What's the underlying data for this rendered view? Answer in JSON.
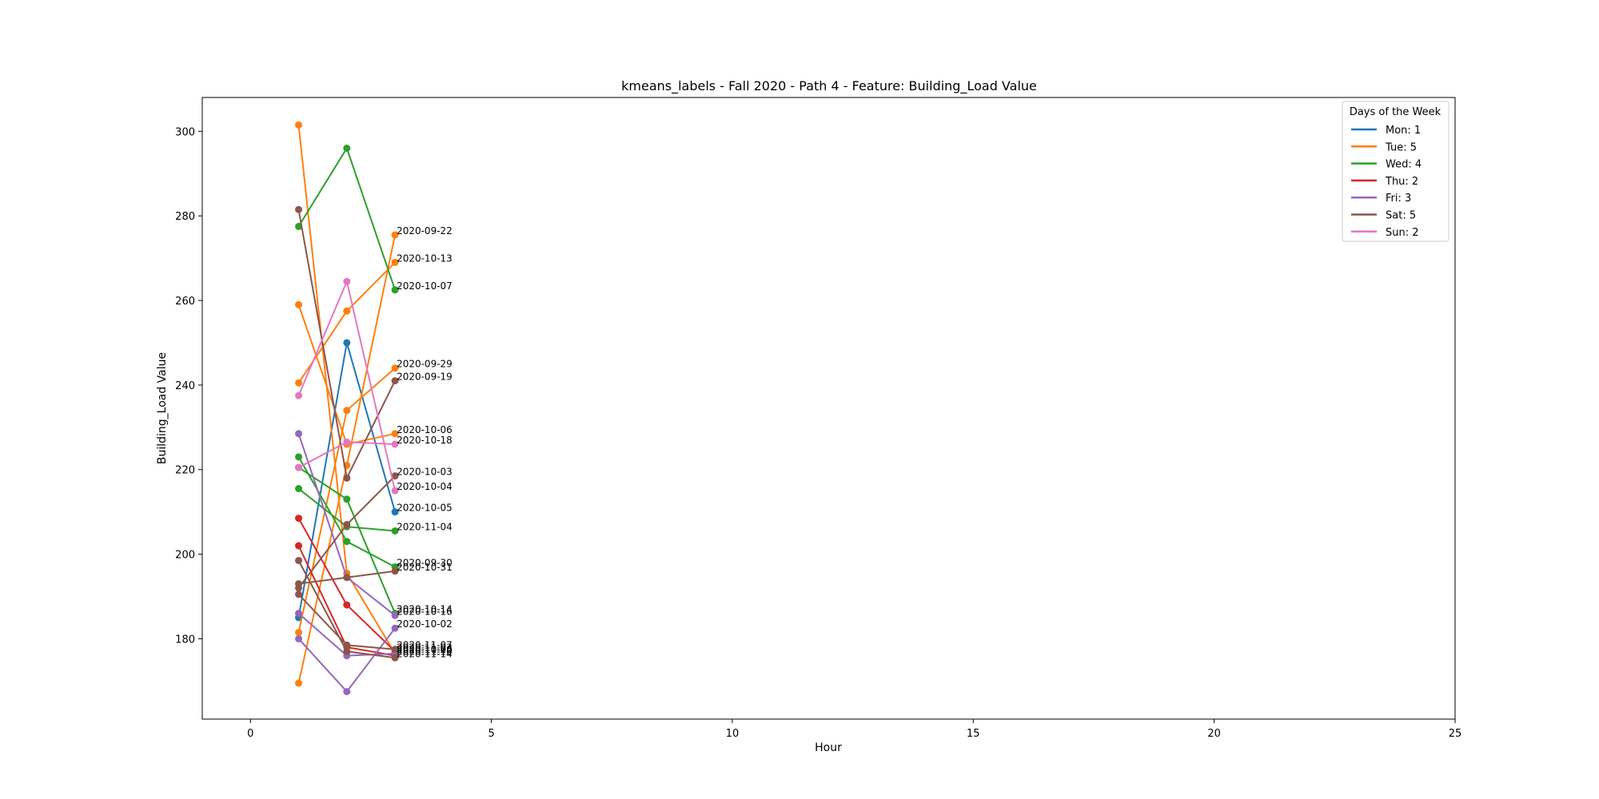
{
  "chart_data": {
    "type": "line",
    "title": "kmeans_labels - Fall 2020 - Path 4 - Feature: Building_Load Value",
    "xlabel": "Hour",
    "ylabel": "Building_Load Value",
    "xlim": [
      -1,
      25
    ],
    "ylim": [
      161,
      308
    ],
    "xticks": [
      0,
      5,
      10,
      15,
      20,
      25
    ],
    "yticks": [
      180,
      200,
      220,
      240,
      260,
      280,
      300
    ],
    "grid": false,
    "legend": {
      "title": "Days of the Week",
      "placement": "top-right",
      "entries": [
        {
          "label": "Mon: 1",
          "color": "#1f77b4"
        },
        {
          "label": "Tue: 5",
          "color": "#ff7f0e"
        },
        {
          "label": "Wed: 4",
          "color": "#2ca02c"
        },
        {
          "label": "Thu: 2",
          "color": "#d62728"
        },
        {
          "label": "Fri: 3",
          "color": "#9467bd"
        },
        {
          "label": "Sat: 5",
          "color": "#8c564b"
        },
        {
          "label": "Sun: 2",
          "color": "#e377c2"
        }
      ]
    },
    "series": [
      {
        "date": "2020-10-05",
        "color": "#1f77b4",
        "x": [
          1,
          2,
          3
        ],
        "y": [
          185.0,
          250.0,
          210.0
        ]
      },
      {
        "date": "2020-09-22",
        "color": "#ff7f0e",
        "x": [
          1,
          2,
          3
        ],
        "y": [
          169.5,
          221.0,
          275.5
        ]
      },
      {
        "date": "2020-10-13",
        "color": "#ff7f0e",
        "x": [
          1,
          2,
          3
        ],
        "y": [
          240.5,
          257.5,
          269.0
        ]
      },
      {
        "date": "2020-09-29",
        "color": "#ff7f0e",
        "x": [
          1,
          2,
          3
        ],
        "y": [
          181.5,
          234.0,
          244.0
        ]
      },
      {
        "date": "2020-10-06",
        "color": "#ff7f0e",
        "x": [
          1,
          2,
          3
        ],
        "y": [
          259.0,
          226.0,
          228.5
        ]
      },
      {
        "date": "2020-10-20",
        "color": "#ff7f0e",
        "x": [
          1,
          2,
          3
        ],
        "y": [
          301.5,
          195.5,
          176.5
        ]
      },
      {
        "date": "2020-10-07",
        "color": "#2ca02c",
        "x": [
          1,
          2,
          3
        ],
        "y": [
          277.5,
          296.0,
          262.5
        ]
      },
      {
        "date": "2020-11-04",
        "color": "#2ca02c",
        "x": [
          1,
          2,
          3
        ],
        "y": [
          215.5,
          206.5,
          205.5
        ]
      },
      {
        "date": "2020-09-30",
        "color": "#2ca02c",
        "x": [
          1,
          2,
          3
        ],
        "y": [
          223.0,
          203.0,
          197.0
        ]
      },
      {
        "date": "2020-10-14",
        "color": "#2ca02c",
        "x": [
          1,
          2,
          3
        ],
        "y": [
          220.5,
          213.0,
          186.0
        ]
      },
      {
        "date": "2020-11-03",
        "color": "#d62728",
        "x": [
          1,
          2,
          3
        ],
        "y": [
          208.5,
          188.0,
          177.0
        ]
      },
      {
        "date": "2020-11-10",
        "color": "#d62728",
        "x": [
          1,
          2,
          3
        ],
        "y": [
          202.0,
          178.0,
          176.0
        ]
      },
      {
        "date": "2020-10-16",
        "color": "#9467bd",
        "x": [
          1,
          2,
          3
        ],
        "y": [
          228.5,
          194.5,
          185.5
        ]
      },
      {
        "date": "2020-10-02",
        "color": "#9467bd",
        "x": [
          1,
          2,
          3
        ],
        "y": [
          180.0,
          167.5,
          182.5
        ]
      },
      {
        "date": "2020-11-06",
        "color": "#9467bd",
        "x": [
          1,
          2,
          3
        ],
        "y": [
          186.0,
          176.0,
          176.5
        ]
      },
      {
        "date": "2020-09-19",
        "color": "#8c564b",
        "x": [
          1,
          2,
          3
        ],
        "y": [
          281.5,
          218.0,
          241.0
        ]
      },
      {
        "date": "2020-10-03",
        "color": "#8c564b",
        "x": [
          1,
          2,
          3
        ],
        "y": [
          192.0,
          207.0,
          218.5
        ]
      },
      {
        "date": "2020-10-31",
        "color": "#8c564b",
        "x": [
          1,
          2,
          3
        ],
        "y": [
          193.0,
          194.5,
          196.0
        ]
      },
      {
        "date": "2020-11-07",
        "color": "#8c564b",
        "x": [
          1,
          2,
          3
        ],
        "y": [
          190.5,
          178.5,
          177.5
        ]
      },
      {
        "date": "2020-11-14",
        "color": "#8c564b",
        "x": [
          1,
          2,
          3
        ],
        "y": [
          198.5,
          177.0,
          175.5
        ]
      },
      {
        "date": "2020-10-18",
        "color": "#e377c2",
        "x": [
          1,
          2,
          3
        ],
        "y": [
          220.5,
          226.5,
          226.0
        ]
      },
      {
        "date": "2020-10-04",
        "color": "#e377c2",
        "x": [
          1,
          2,
          3
        ],
        "y": [
          237.5,
          264.5,
          215.0
        ]
      }
    ]
  }
}
